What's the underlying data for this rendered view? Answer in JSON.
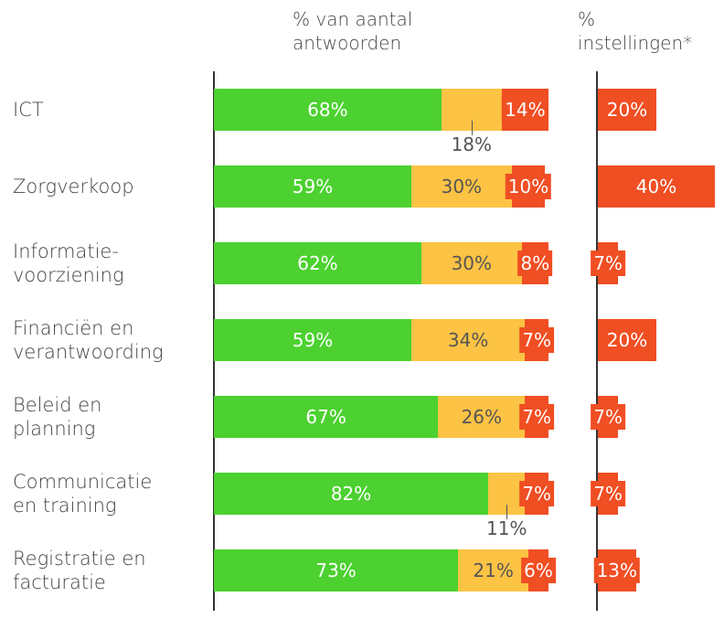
{
  "chart_data": [
    {
      "type": "bar-stacked-horizontal",
      "title": "% van aantal\nantwoorden",
      "categories": [
        "ICT",
        "Zorgverkoop",
        "Informatie-\nvoorziening",
        "Financiën en\nverantwoording",
        "Beleid en\nplanning",
        "Communicatie\nen training",
        "Registratie en\nfacturatie"
      ],
      "xlim": [
        0,
        100
      ],
      "series": [
        {
          "color": "#4cd130",
          "values": [
            68,
            59,
            62,
            59,
            67,
            82,
            73
          ],
          "value_labels": [
            "68%",
            "59%",
            "62%",
            "59%",
            "67%",
            "82%",
            "73%"
          ]
        },
        {
          "color": "#fdc344",
          "values": [
            18,
            30,
            30,
            34,
            26,
            11,
            21
          ],
          "value_labels": [
            "18%",
            "30%",
            "30%",
            "34%",
            "26%",
            "11%",
            "21%"
          ]
        },
        {
          "color": "#f04e23",
          "values": [
            14,
            10,
            8,
            7,
            7,
            7,
            6
          ],
          "value_labels": [
            "14%",
            "10%",
            "8%",
            "7%",
            "7%",
            "7%",
            "6%"
          ]
        }
      ]
    },
    {
      "type": "bar-horizontal",
      "title": "%\ninstellingen*",
      "xlim": [
        0,
        40
      ],
      "color": "#f04e23",
      "values": [
        20,
        40,
        7,
        20,
        7,
        7,
        13
      ],
      "value_labels": [
        "20%",
        "40%",
        "7%",
        "20%",
        "7%",
        "7%",
        "13%"
      ]
    }
  ]
}
